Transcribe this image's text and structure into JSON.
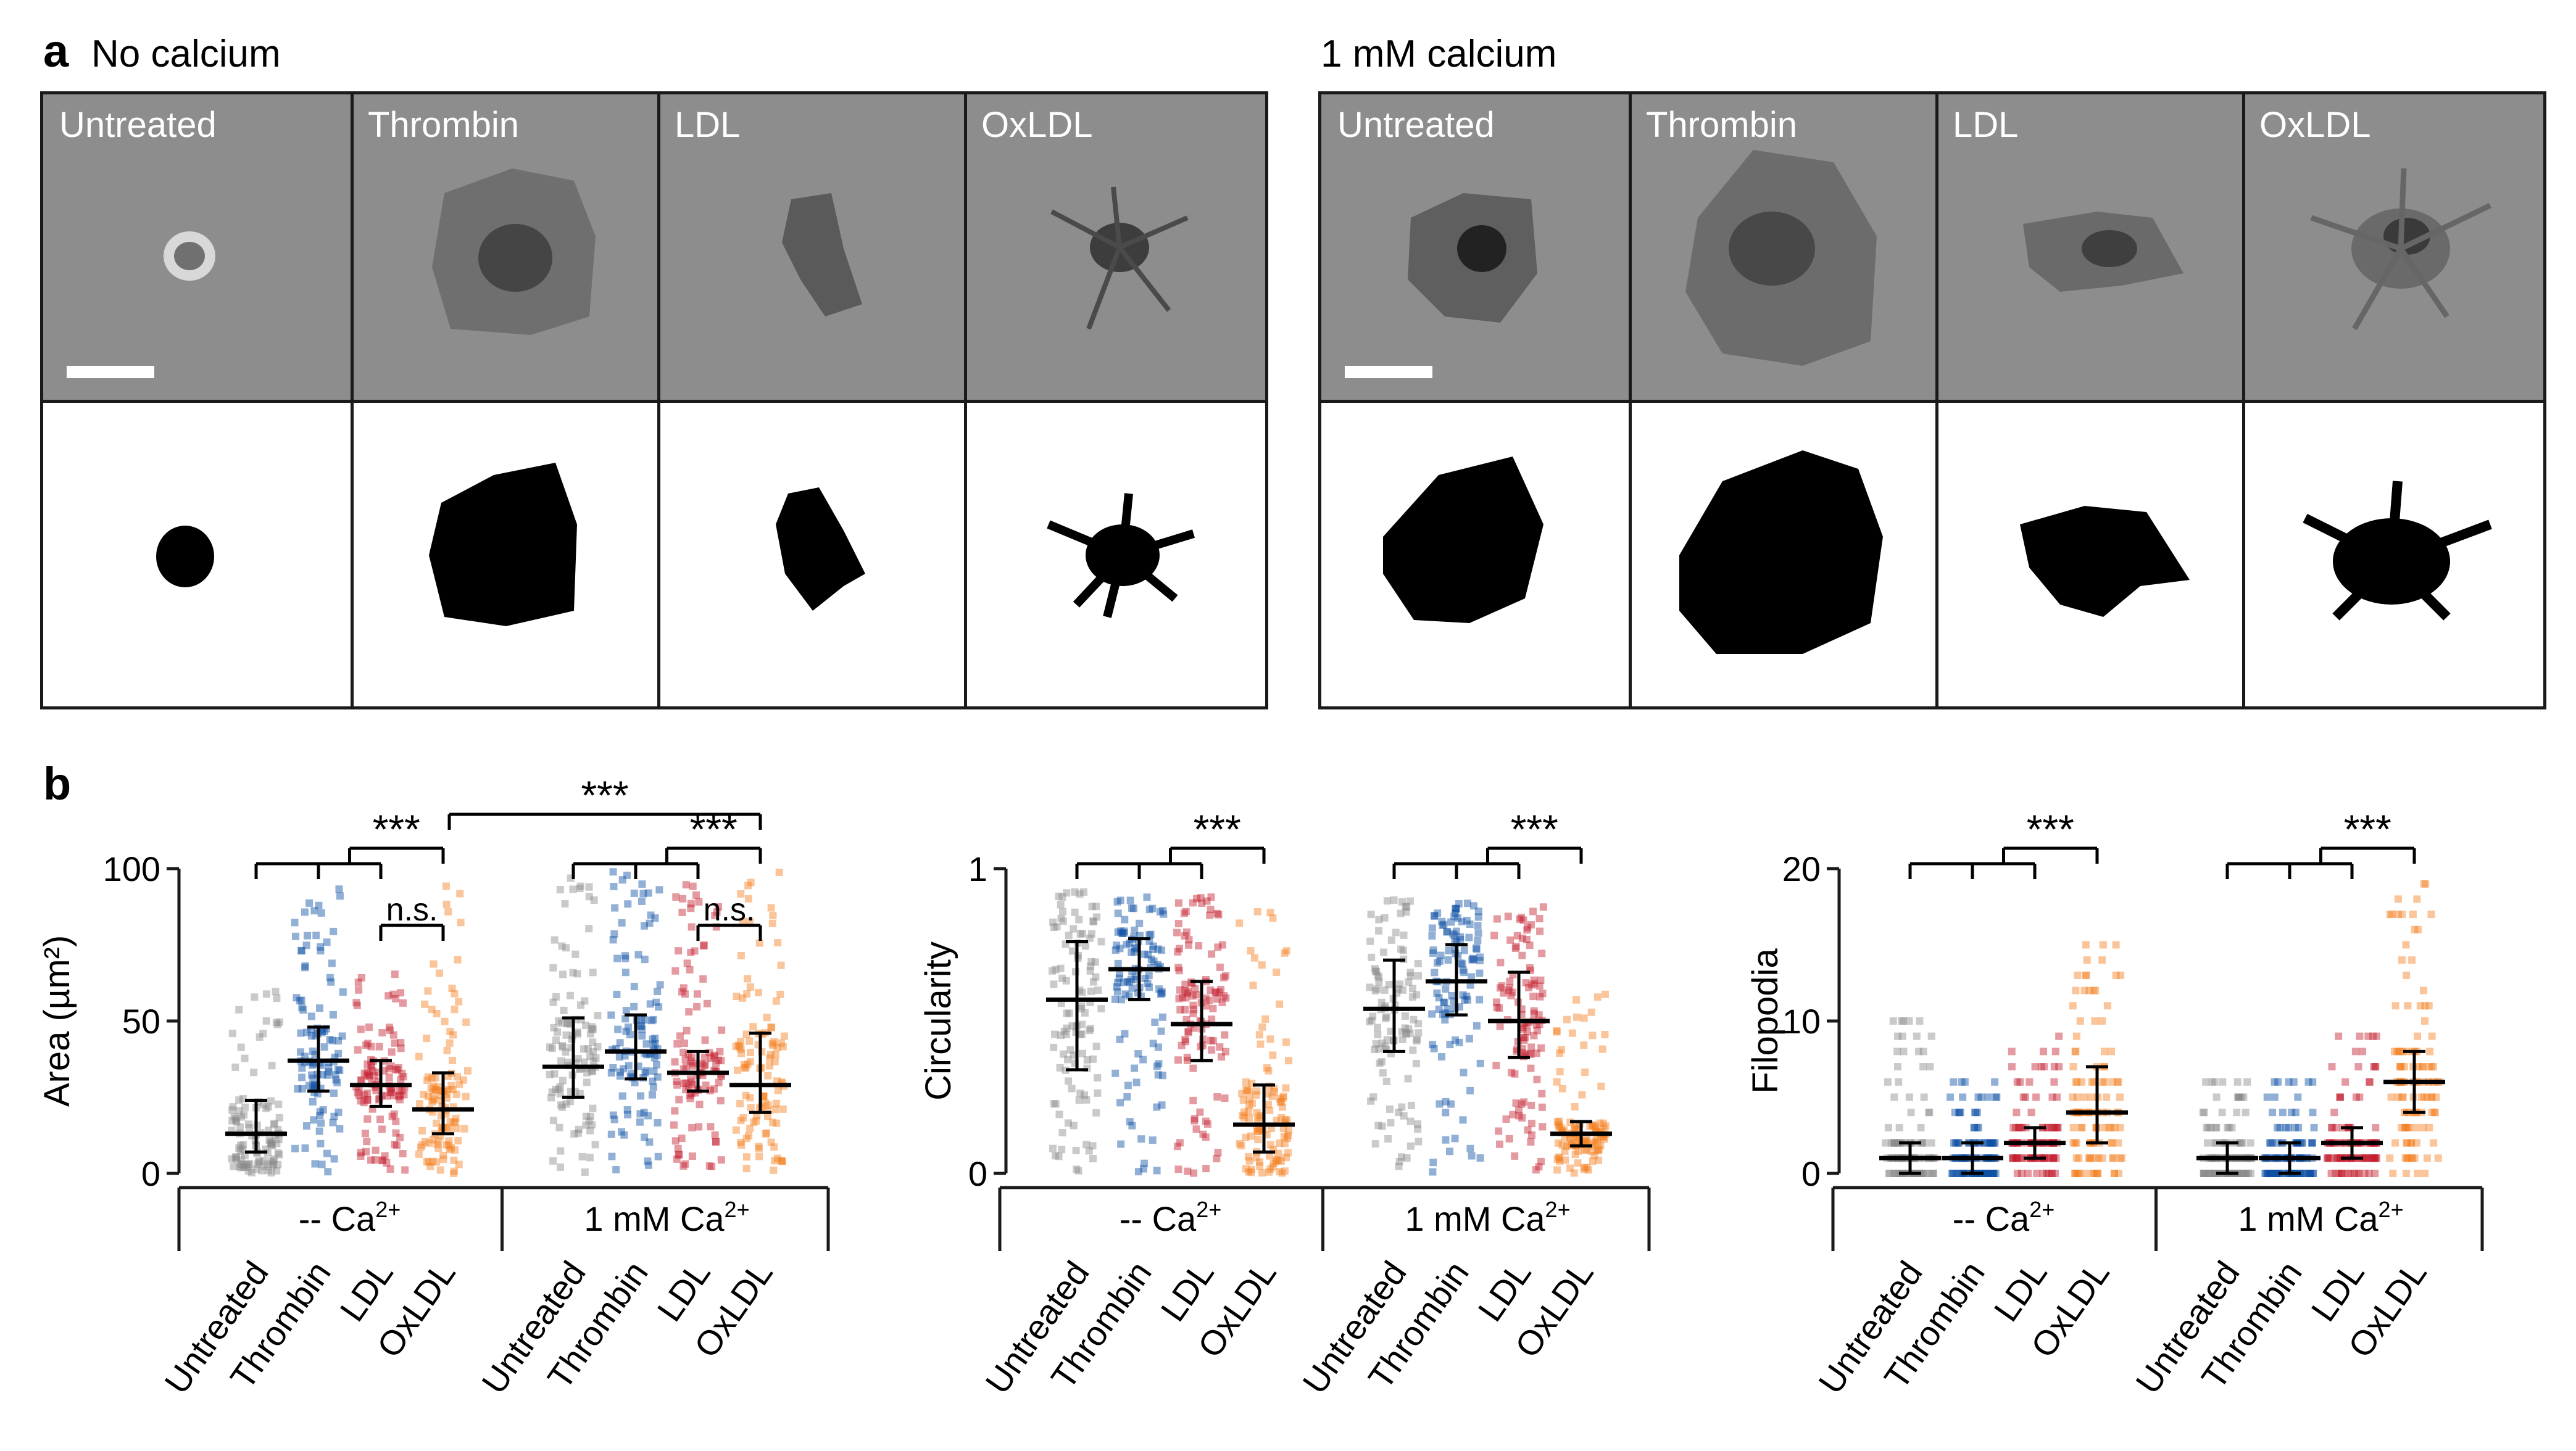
{
  "panel_a": {
    "letter": "a",
    "groups": [
      {
        "condition": "No calcium",
        "treatments": [
          "Untreated",
          "Thrombin",
          "LDL",
          "OxLDL"
        ]
      },
      {
        "condition": "1 mM calcium",
        "treatments": [
          "Untreated",
          "Thrombin",
          "LDL",
          "OxLDL"
        ]
      }
    ]
  },
  "panel_b": {
    "letter": "b"
  },
  "chart_data": [
    {
      "type": "scatter",
      "ylabel": "Area (µm²)",
      "ylim": [
        0,
        100
      ],
      "yticks": [
        "0",
        "50",
        "100"
      ],
      "group_labels": [
        "-- Ca2+",
        "1 mM Ca2+"
      ],
      "group_label_base": [
        "-- Ca",
        "1 mM Ca"
      ],
      "group_label_sup": "2+",
      "categories": [
        "Untreated",
        "Thrombin",
        "LDL",
        "OxLDL",
        "Untreated",
        "Thrombin",
        "LDL",
        "OxLDL"
      ],
      "colors": [
        "#8a8a8a",
        "#0d4fa3",
        "#c41e2e",
        "#f57e20",
        "#8a8a8a",
        "#0d4fa3",
        "#c41e2e",
        "#f57e20"
      ],
      "median": [
        13,
        37,
        29,
        21,
        35,
        40,
        33,
        29
      ],
      "q1": [
        7,
        27,
        22,
        13,
        25,
        31,
        27,
        20
      ],
      "q3": [
        24,
        48,
        37,
        33,
        51,
        52,
        40,
        46
      ],
      "spread_max": [
        64,
        98,
        67,
        96,
        97,
        99,
        95,
        99
      ],
      "significance": [
        {
          "label": "***",
          "kind": "one-vs-three"
        },
        {
          "label": "n.s.",
          "kind": "pair"
        },
        {
          "label": "***",
          "kind": "across-groups"
        },
        {
          "label": "***",
          "kind": "one-vs-three"
        },
        {
          "label": "n.s.",
          "kind": "pair"
        }
      ]
    },
    {
      "type": "scatter",
      "ylabel": "Circularity",
      "ylim": [
        0,
        1
      ],
      "yticks": [
        "0",
        "1"
      ],
      "group_labels": [
        "-- Ca2+",
        "1 mM Ca2+"
      ],
      "group_label_base": [
        "-- Ca",
        "1 mM Ca"
      ],
      "group_label_sup": "2+",
      "categories": [
        "Untreated",
        "Thrombin",
        "LDL",
        "OxLDL",
        "Untreated",
        "Thrombin",
        "LDL",
        "OxLDL"
      ],
      "colors": [
        "#8a8a8a",
        "#0d4fa3",
        "#c41e2e",
        "#f57e20",
        "#8a8a8a",
        "#0d4fa3",
        "#c41e2e",
        "#f57e20"
      ],
      "median": [
        0.57,
        0.67,
        0.49,
        0.16,
        0.54,
        0.63,
        0.5,
        0.13
      ],
      "q1": [
        0.34,
        0.57,
        0.37,
        0.07,
        0.4,
        0.52,
        0.38,
        0.09
      ],
      "q3": [
        0.76,
        0.77,
        0.63,
        0.29,
        0.7,
        0.75,
        0.66,
        0.17
      ],
      "spread_max": [
        0.93,
        0.92,
        0.91,
        0.9,
        0.9,
        0.9,
        0.88,
        0.6
      ],
      "significance": [
        {
          "label": "***",
          "kind": "one-vs-three"
        },
        {
          "label": "***",
          "kind": "one-vs-three"
        }
      ]
    },
    {
      "type": "scatter",
      "ylabel": "Filopodia",
      "ylim": [
        0,
        20
      ],
      "yticks": [
        "0",
        "10",
        "20"
      ],
      "group_labels": [
        "-- Ca2+",
        "1 mM Ca2+"
      ],
      "group_label_base": [
        "-- Ca",
        "1 mM Ca"
      ],
      "group_label_sup": "2+",
      "categories": [
        "Untreated",
        "Thrombin",
        "LDL",
        "OxLDL",
        "Untreated",
        "Thrombin",
        "LDL",
        "OxLDL"
      ],
      "colors": [
        "#8a8a8a",
        "#0d4fa3",
        "#c41e2e",
        "#f57e20",
        "#8a8a8a",
        "#0d4fa3",
        "#c41e2e",
        "#f57e20"
      ],
      "median": [
        1,
        1,
        2,
        4,
        1,
        1,
        2,
        6
      ],
      "q1": [
        0,
        0,
        1,
        2,
        0,
        0,
        1,
        4
      ],
      "q3": [
        2,
        2,
        3,
        7,
        2,
        2,
        3,
        8
      ],
      "spread_max": [
        10,
        6,
        9,
        15,
        6,
        6,
        9,
        20
      ],
      "significance": [
        {
          "label": "***",
          "kind": "one-vs-three"
        },
        {
          "label": "***",
          "kind": "one-vs-three"
        }
      ]
    }
  ]
}
